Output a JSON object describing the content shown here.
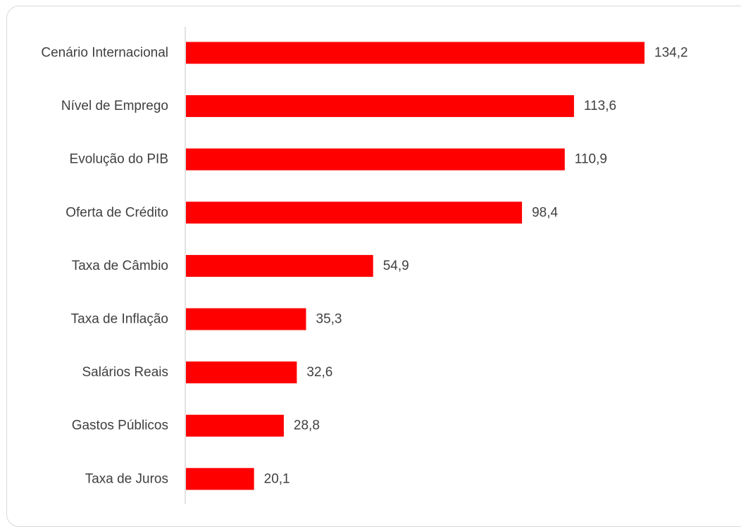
{
  "chart_data": {
    "type": "bar",
    "orientation": "horizontal",
    "categories": [
      "Cenário Internacional",
      "Nível de Emprego",
      "Evolução do PIB",
      "Oferta de Crédito",
      "Taxa de Câmbio",
      "Taxa de Inflação",
      "Salários Reais",
      "Gastos Públicos",
      "Taxa de Juros"
    ],
    "values": [
      134.2,
      113.6,
      110.9,
      98.4,
      54.9,
      35.3,
      32.6,
      28.8,
      20.1
    ],
    "value_labels": [
      "134,2",
      "113,6",
      "110,9",
      "98,4",
      "54,9",
      "35,3",
      "32,6",
      "28,8",
      "20,1"
    ],
    "bar_color": "#ff0000",
    "axis_color": "#d9d9d9",
    "label_color": "#404040",
    "grid": false,
    "legend": "none",
    "xlim": [
      0,
      134.2
    ]
  }
}
